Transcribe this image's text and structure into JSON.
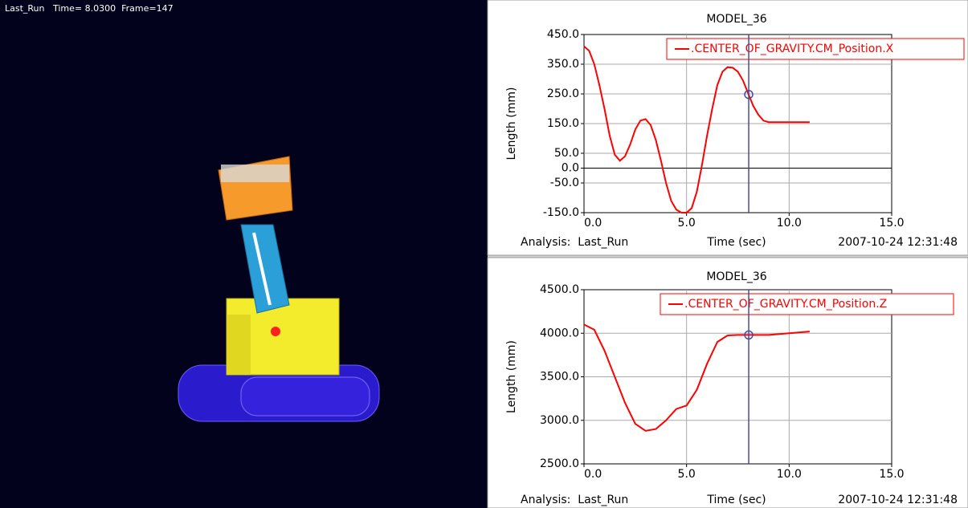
{
  "viewport": {
    "header": "Last_Run   Time= 8.0300  Frame=147"
  },
  "chart_data": [
    {
      "type": "line",
      "title": "MODEL_36",
      "x": [
        0,
        0.25,
        0.5,
        0.75,
        1.0,
        1.25,
        1.5,
        1.75,
        2.0,
        2.25,
        2.5,
        2.75,
        3.0,
        3.25,
        3.5,
        3.75,
        4.0,
        4.25,
        4.5,
        4.75,
        5.0,
        5.25,
        5.5,
        5.75,
        6.0,
        6.25,
        6.5,
        6.75,
        7.0,
        7.25,
        7.5,
        7.75,
        8.0,
        8.25,
        8.5,
        8.75,
        9.0,
        9.5,
        10.0,
        10.5,
        11.0
      ],
      "series": [
        {
          "name": ".CENTER_OF_GRAVITY.CM_Position.X",
          "color": "#ff0000",
          "values": [
            410,
            395,
            350,
            280,
            200,
            110,
            45,
            25,
            40,
            80,
            130,
            160,
            165,
            145,
            95,
            25,
            -50,
            -110,
            -140,
            -150,
            -150,
            -135,
            -80,
            10,
            110,
            200,
            280,
            325,
            340,
            338,
            325,
            295,
            252,
            210,
            180,
            160,
            155,
            155,
            155,
            155,
            155
          ]
        }
      ],
      "xlim": [
        0,
        15
      ],
      "xticks": [
        {
          "value": 0,
          "label": "0.0"
        },
        {
          "value": 5,
          "label": "5.0"
        },
        {
          "value": 10,
          "label": "10.0"
        },
        {
          "value": 15,
          "label": "15.0"
        }
      ],
      "ylim": [
        -150,
        450
      ],
      "yticks": [
        {
          "value": 450,
          "label": "450.0"
        },
        {
          "value": 350,
          "label": "350.0"
        },
        {
          "value": 250,
          "label": "250.0"
        },
        {
          "value": 150,
          "label": "150.0"
        },
        {
          "value": 50,
          "label": "50.0"
        },
        {
          "value": 0,
          "label": "0.0"
        },
        {
          "value": -50,
          "label": "-50.0"
        },
        {
          "value": -150,
          "label": "-150.0"
        }
      ],
      "xlabel": "Time (sec)",
      "ylabel": "Length (mm)",
      "analysis": "Analysis:  Last_Run",
      "timestamp": "2007-10-24 12:31:48",
      "grid": true,
      "zero_line": true,
      "cursor": {
        "x": 8.03,
        "y": 248,
        "color": "#4b4b9a"
      }
    },
    {
      "type": "line",
      "title": "MODEL_36",
      "x": [
        0,
        0.5,
        1.0,
        1.5,
        2.0,
        2.5,
        3.0,
        3.5,
        4.0,
        4.5,
        5.0,
        5.5,
        6.0,
        6.5,
        7.0,
        7.5,
        8.0,
        9.0,
        10.0,
        11.0
      ],
      "series": [
        {
          "name": ".CENTER_OF_GRAVITY.CM_Position.Z",
          "color": "#ff0000",
          "values": [
            4100,
            4040,
            3800,
            3500,
            3200,
            2960,
            2880,
            2900,
            3000,
            3130,
            3170,
            3350,
            3650,
            3900,
            3975,
            3980,
            3980,
            3980,
            4000,
            4020
          ]
        }
      ],
      "xlim": [
        0,
        15
      ],
      "xticks": [
        {
          "value": 0,
          "label": "0.0"
        },
        {
          "value": 5,
          "label": "5.0"
        },
        {
          "value": 10,
          "label": "10.0"
        },
        {
          "value": 15,
          "label": "15.0"
        }
      ],
      "ylim": [
        2500,
        4500
      ],
      "yticks": [
        {
          "value": 4500,
          "label": "4500.0"
        },
        {
          "value": 4000,
          "label": "4000.0"
        },
        {
          "value": 3500,
          "label": "3500.0"
        },
        {
          "value": 3000,
          "label": "3000.0"
        },
        {
          "value": 2500,
          "label": "2500.0"
        }
      ],
      "xlabel": "Time (sec)",
      "ylabel": "Length (mm)",
      "analysis": "Analysis:  Last_Run",
      "timestamp": "2007-10-24 12:31:48",
      "grid": true,
      "zero_line": false,
      "cursor": {
        "x": 8.03,
        "y": 3980,
        "color": "#4b4b9a"
      }
    }
  ]
}
